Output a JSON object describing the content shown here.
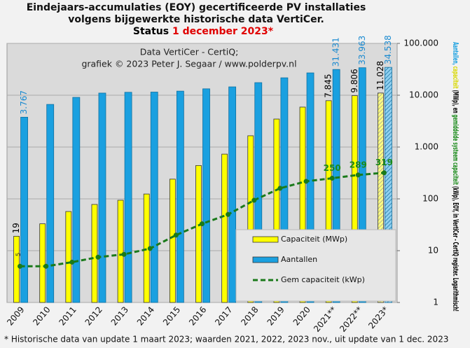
{
  "chart_data": {
    "type": "bar",
    "title": [
      "Eindejaars-accumulaties (EOY) gecertificeerde PV installaties",
      "volgens bijgewerkte historische data VertiCer."
    ],
    "status": [
      {
        "text": "Status ",
        "color": "#000000"
      },
      {
        "text": "1 december 2023*",
        "color": "#e00000"
      }
    ],
    "annotations": [
      "Data VertiCer - CertiQ;",
      "grafiek © 2023 Peter J. Segaar / www.polderpv.nl"
    ],
    "footnote": "* Historische data van update 1 maart 2023; waarden 2021, 2022, 2023 nov., uit update van 1 dec. 2023",
    "ylabel": [
      {
        "text": "Aantallen, ",
        "color": "#1aa0e0"
      },
      {
        "text": "capaciteit",
        "color": "#d8d800"
      },
      {
        "text": " (MWp), en ",
        "color": "#000000"
      },
      {
        "text": "gemiddelde systeem capaciteit",
        "color": "#1a8a1a"
      },
      {
        "text": " (kWp), EOY, in VertiCer - CertiQ register. Logarithmisch!",
        "color": "#000000"
      }
    ],
    "categories": [
      "2009",
      "2010",
      "2011",
      "2012",
      "2013",
      "2014",
      "2015",
      "2016",
      "2017",
      "2018",
      "2019",
      "2020",
      "2021**",
      "2022**",
      "2023*"
    ],
    "series": [
      {
        "name": "Capaciteit (MWp)",
        "type": "bar",
        "color": "#ffff00",
        "label_color": "#000000",
        "values": [
          19,
          33,
          57,
          78,
          94,
          124,
          240,
          440,
          730,
          1650,
          3470,
          5900,
          7845,
          9806,
          11028
        ],
        "value_labels": [
          "19",
          null,
          null,
          null,
          null,
          null,
          null,
          null,
          null,
          null,
          null,
          null,
          "7.845",
          "9.806",
          "11.028"
        ]
      },
      {
        "name": "Aantallen",
        "type": "bar",
        "color": "#1aa0e0",
        "label_color": "#1a8ad0",
        "values": [
          3767,
          6650,
          9100,
          11000,
          11400,
          11500,
          12000,
          13300,
          14500,
          17500,
          21700,
          27000,
          31431,
          33963,
          34538
        ],
        "value_labels": [
          "3.767",
          null,
          null,
          null,
          null,
          null,
          null,
          null,
          null,
          null,
          null,
          null,
          "31.431",
          "33.963",
          "34.538"
        ]
      },
      {
        "name": "Gem capaciteit (kWp)",
        "type": "line",
        "color": "#1a7a1a",
        "label_color": "#1a8a1a",
        "values": [
          5,
          5,
          6,
          7.5,
          8.5,
          11,
          20,
          33,
          50,
          94,
          160,
          218,
          250,
          289,
          319
        ],
        "value_labels": [
          "5",
          null,
          null,
          null,
          null,
          null,
          null,
          null,
          null,
          null,
          null,
          null,
          "250",
          "289",
          "319"
        ]
      }
    ],
    "hatched": [
      14
    ],
    "ylim": [
      1,
      100000
    ],
    "log_y": true,
    "yticks": [
      1,
      10,
      100,
      {
        "value": 1000,
        "label": "1.000"
      },
      {
        "value": 10000,
        "label": "10.000"
      },
      {
        "value": 100000,
        "label": "100.000"
      }
    ],
    "grid": true,
    "legend": "lower right"
  }
}
